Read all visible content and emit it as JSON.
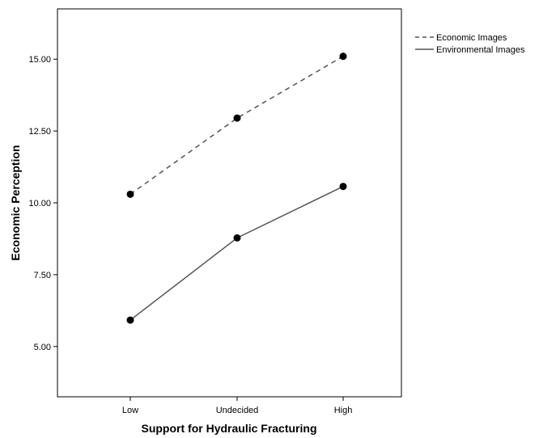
{
  "chart_data": {
    "type": "line",
    "categories": [
      "Low",
      "Undecided",
      "High"
    ],
    "xlabel": "Support for Hydraulic Fracturing",
    "ylabel": "Economic Perception",
    "ylim": [
      3.25,
      16.75
    ],
    "yticks": [
      "5.00",
      "7.50",
      "10.00",
      "12.50",
      "15.00"
    ],
    "yticks_values": [
      5,
      7.5,
      10,
      12.5,
      15
    ],
    "grid": false,
    "legend_position": "right",
    "series": [
      {
        "name": "Economic Images",
        "values": [
          10.3,
          12.95,
          15.1
        ],
        "style": "dashed",
        "color": "#555555"
      },
      {
        "name": "Environmental Images",
        "values": [
          5.92,
          8.78,
          10.57
        ],
        "style": "solid",
        "color": "#555555"
      }
    ]
  }
}
